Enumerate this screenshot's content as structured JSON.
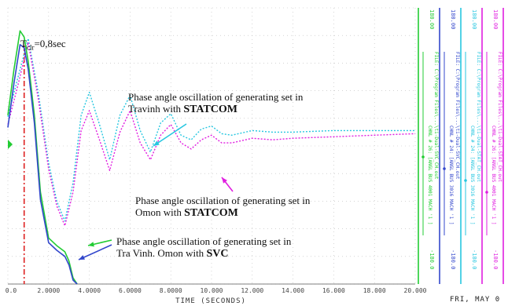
{
  "chart_data": {
    "type": "line",
    "xlabel": "TIME  (SECONDS)",
    "xlim": [
      0,
      20
    ],
    "x_ticks": [
      {
        "v": 0,
        "label": "0.0"
      },
      {
        "v": 2,
        "label": "2.0000"
      },
      {
        "v": 4,
        "label": "4.0000"
      },
      {
        "v": 6,
        "label": "6.0000"
      },
      {
        "v": 8,
        "label": "8.0000"
      },
      {
        "v": 10,
        "label": "10.000"
      },
      {
        "v": 12,
        "label": "12.000"
      },
      {
        "v": 14,
        "label": "14.000"
      },
      {
        "v": 16,
        "label": "16.000"
      },
      {
        "v": 18,
        "label": "18.000"
      },
      {
        "v": 20,
        "label": "20.000"
      }
    ],
    "ylim": [
      -180,
      180
    ],
    "grid": true,
    "series": [
      {
        "color": "#27c7e0",
        "style": "dotted",
        "x": [
          0,
          0.5,
          1.0,
          1.5,
          2.0,
          2.4,
          2.8,
          3.2,
          3.6,
          4.0,
          4.5,
          5.0,
          5.5,
          6.0,
          6.5,
          7.0,
          7.5,
          8.0,
          8.5,
          9.0,
          9.5,
          10.0,
          10.5,
          11.0,
          12.0,
          13.0,
          14.0,
          16.0,
          18.0,
          20.0
        ],
        "y": [
          38,
          90,
          140,
          68,
          -22,
          -72,
          -98,
          -48,
          40,
          70,
          28,
          -18,
          40,
          66,
          20,
          -8,
          30,
          42,
          14,
          8,
          22,
          26,
          16,
          14,
          20,
          18,
          18,
          20,
          20,
          20
        ]
      },
      {
        "color": "#e01ee0",
        "style": "dotted",
        "x": [
          0,
          0.5,
          1.0,
          1.5,
          2.0,
          2.4,
          2.8,
          3.2,
          3.6,
          4.0,
          4.5,
          5.0,
          5.5,
          6.0,
          6.5,
          7.0,
          7.5,
          8.0,
          8.5,
          9.0,
          9.5,
          10.0,
          10.5,
          11.0,
          12.0,
          13.0,
          14.0,
          16.0,
          18.0,
          20.0
        ],
        "y": [
          28,
          80,
          135,
          60,
          -30,
          -78,
          -104,
          -60,
          20,
          46,
          8,
          -32,
          18,
          46,
          4,
          -18,
          14,
          28,
          4,
          -4,
          8,
          14,
          4,
          4,
          10,
          8,
          10,
          12,
          14,
          16
        ]
      },
      {
        "color": "#22cc33",
        "style": "solid",
        "x": [
          0,
          0.3,
          0.6,
          0.8,
          1.0,
          1.3,
          1.6,
          2.0,
          2.4,
          2.8,
          3.0,
          3.2,
          3.4
        ],
        "y": [
          40,
          100,
          150,
          142,
          110,
          40,
          -60,
          -120,
          -130,
          -138,
          -150,
          -172,
          -180
        ]
      },
      {
        "color": "#3347cc",
        "style": "solid",
        "x": [
          0,
          0.3,
          0.6,
          0.8,
          1.0,
          1.3,
          1.6,
          2.0,
          2.4,
          2.8,
          3.0,
          3.2,
          3.4
        ],
        "y": [
          24,
          82,
          132,
          128,
          100,
          30,
          -70,
          -126,
          -136,
          -144,
          -155,
          -175,
          -180
        ]
      }
    ],
    "annotations": {
      "tclr": "T",
      "tclr_sub": "clr",
      "tclr_value": "=0,8sec",
      "statcom_travinh_1": "Phase angle oscillation of generating set in",
      "statcom_travinh_2": "Travinh with ",
      "statcom_travinh_3": "STATCOM",
      "statcom_omon_1": "Phase angle oscillation of generating set in",
      "statcom_omon_2": "Omon with ",
      "statcom_omon_3": "STATCOM",
      "svc_1": "Phase angle oscillation of generating set in",
      "svc_2": "Tra Vinh. Omon with ",
      "svc_3": "SVC"
    },
    "side_panels": [
      {
        "color": "#22cc33",
        "top": "180.00",
        "bottom": "-180.0",
        "file": "FILE: C:\\Program Files\\...\\ti-Dual-SVC_CH.out",
        "chnl": "CHNL # 26: [ANGL BUS 4001 MACH '1 ]"
      },
      {
        "color": "#3347cc",
        "top": "180.00",
        "bottom": "-180.0",
        "file": "FILE: C:\\Program Files\\...\\ti-Dual-SVC_CH.out",
        "chnl": "CHNL # 24: [ANGL BUS 3016 MACH '1 ]"
      },
      {
        "color": "#27c7e0",
        "top": "180.00",
        "bottom": "-180.0",
        "file": "FILE: C:\\Program Files\\...\\ti-Dual-STAT_CH.out",
        "chnl": "CHNL # 24: [ANGL BUS 3016 MACH '1 ]"
      },
      {
        "color": "#e01ee0",
        "top": "180.00",
        "bottom": "-180.0",
        "file": "FILE: C:\\Program Files\\...\\ti-Dual-STAT_CH.out",
        "chnl": "CHNL # 26: [ANGL BUS 4001 MACH '1 ]"
      }
    ],
    "footer_date": "FRI, MAY 0"
  }
}
